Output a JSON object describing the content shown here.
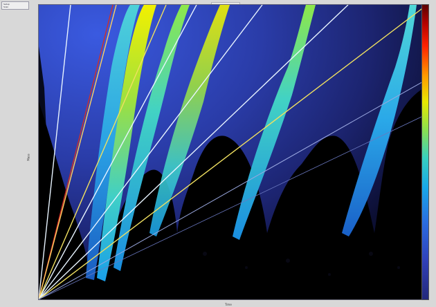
{
  "window": {
    "menu_lines": [
      "Setup",
      "Scan"
    ],
    "title": ""
  },
  "axes": {
    "xlabel": "Time",
    "ylabel": "Mass"
  },
  "colors": {
    "background": "#000000",
    "colorbar_top": "#5a0000",
    "colorbar_bottom": "#23287a",
    "overlay_line_white": "#e8f4ff",
    "overlay_line_yellow": "#f0e060"
  }
}
